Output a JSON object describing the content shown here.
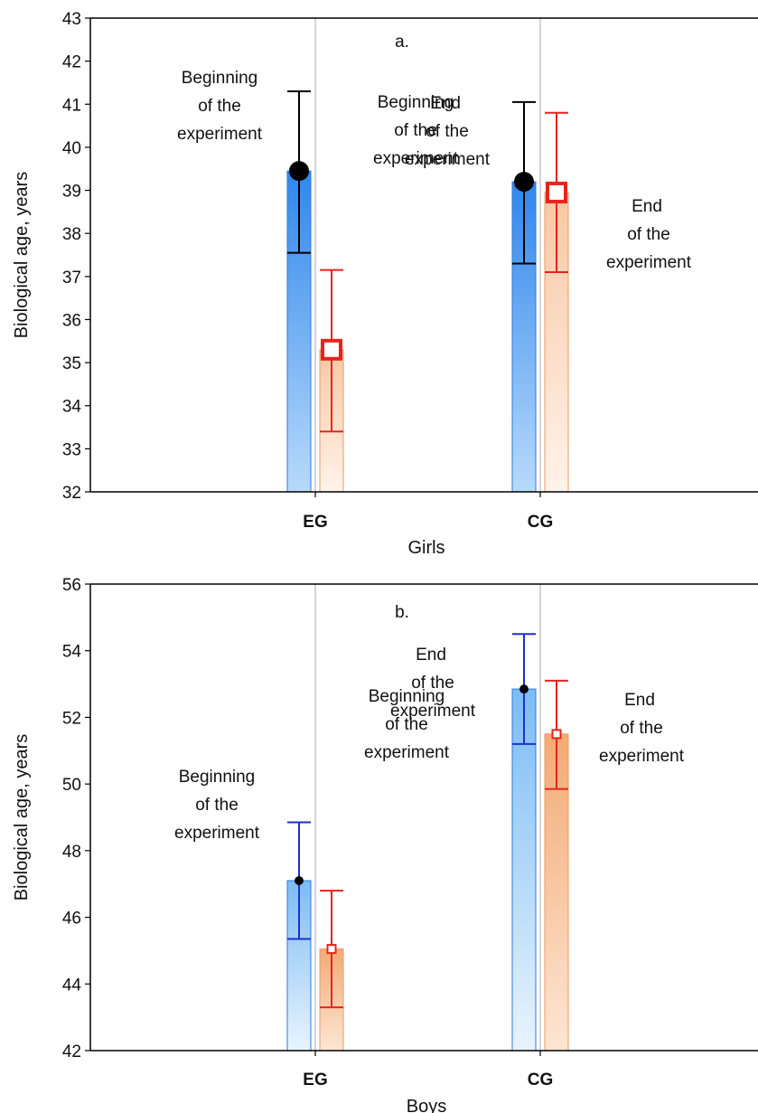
{
  "chart_data": [
    {
      "type": "bar",
      "panel_label": "a.",
      "xlabel": "Girls",
      "ylabel": "Biological age, years",
      "ylim": [
        32,
        43
      ],
      "yticks": [
        32,
        33,
        34,
        35,
        36,
        37,
        38,
        39,
        40,
        41,
        42,
        43
      ],
      "categories": [
        "EG",
        "CG"
      ],
      "grid": "vertical lines at categories",
      "series": [
        {
          "key": "beginning",
          "values": [
            39.45,
            39.2
          ],
          "err_low": [
            37.55,
            37.3
          ],
          "err_high": [
            41.3,
            41.05
          ],
          "marker": "filled-circle",
          "bar_color": "#3c8ee8",
          "err_color": "#000000",
          "annotations": [
            [
              "Beginning",
              "of the",
              "experiment"
            ],
            [
              "Beginning",
              "of the",
              "experiment"
            ]
          ]
        },
        {
          "key": "end",
          "values": [
            35.3,
            38.95
          ],
          "err_low": [
            33.4,
            37.1
          ],
          "err_high": [
            37.15,
            40.8
          ],
          "marker": "open-square",
          "bar_color": "#f5b888",
          "err_color": "#e8231e",
          "annotations": [
            [
              "End",
              "of the",
              "experiment"
            ],
            [
              "End",
              "of the",
              "experiment"
            ]
          ]
        }
      ]
    },
    {
      "type": "bar",
      "panel_label": "b.",
      "xlabel": "Boys",
      "ylabel": "Biological age, years",
      "ylim": [
        42,
        56
      ],
      "yticks": [
        42,
        44,
        46,
        48,
        50,
        52,
        54,
        56
      ],
      "categories": [
        "EG",
        "CG"
      ],
      "grid": "vertical lines at categories",
      "series": [
        {
          "key": "beginning",
          "values": [
            47.1,
            52.85
          ],
          "err_low": [
            45.35,
            51.2
          ],
          "err_high": [
            48.85,
            54.5
          ],
          "marker": "small-filled-circle",
          "bar_color": "#3c8ee8",
          "err_color": "#1f2fc8",
          "annotations": [
            [
              "Beginning",
              "of the",
              "experiment"
            ],
            [
              "Beginning",
              "of the",
              "experiment"
            ]
          ]
        },
        {
          "key": "end",
          "values": [
            45.05,
            51.5
          ],
          "err_low": [
            43.3,
            49.85
          ],
          "err_high": [
            46.8,
            53.1
          ],
          "marker": "small-open-square",
          "bar_color": "#f5b888",
          "err_color": "#e8231e",
          "annotations": [
            [
              "End",
              "of the",
              "experiment"
            ],
            [
              "End",
              "of the",
              "experiment"
            ]
          ]
        }
      ]
    }
  ]
}
